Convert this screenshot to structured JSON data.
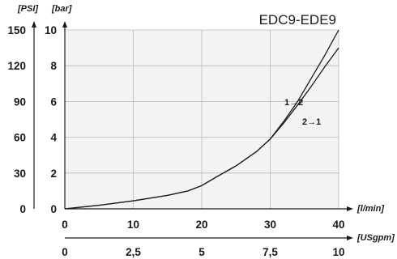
{
  "chart_data": {
    "type": "line",
    "title": "EDC9-EDE9",
    "y_units_left": "[PSI]",
    "y_units_right": "[bar]",
    "x_unit_primary": "[l/min]",
    "x_unit_secondary": "[USgpm]",
    "y_bar_ticks": [
      "0",
      "2",
      "4",
      "6",
      "8",
      "10"
    ],
    "y_psi_ticks": [
      "0",
      "30",
      "60",
      "90",
      "120",
      "150"
    ],
    "x_lmin_ticks": [
      "0",
      "10",
      "20",
      "30",
      "40"
    ],
    "x_usgpm_ticks": [
      "0",
      "2,5",
      "5",
      "7,5",
      "10"
    ],
    "xlim": [
      0,
      40
    ],
    "ylim": [
      0,
      10
    ],
    "grid": true,
    "plot_background": "#f3f3f3",
    "series": [
      {
        "name": "1→2",
        "x": [
          0,
          5,
          10,
          15,
          18,
          20,
          22,
          25,
          28,
          30,
          32,
          34,
          36,
          38,
          40
        ],
        "y": [
          0,
          0.2,
          0.45,
          0.75,
          1.0,
          1.3,
          1.75,
          2.4,
          3.2,
          3.9,
          4.9,
          6.0,
          7.3,
          8.6,
          10.0
        ]
      },
      {
        "name": "2→1",
        "x": [
          0,
          5,
          10,
          15,
          18,
          20,
          22,
          25,
          28,
          30,
          32,
          34,
          36,
          38,
          40
        ],
        "y": [
          0,
          0.2,
          0.45,
          0.75,
          1.0,
          1.3,
          1.75,
          2.4,
          3.2,
          3.9,
          4.8,
          5.8,
          6.85,
          7.95,
          9.0
        ]
      }
    ]
  }
}
